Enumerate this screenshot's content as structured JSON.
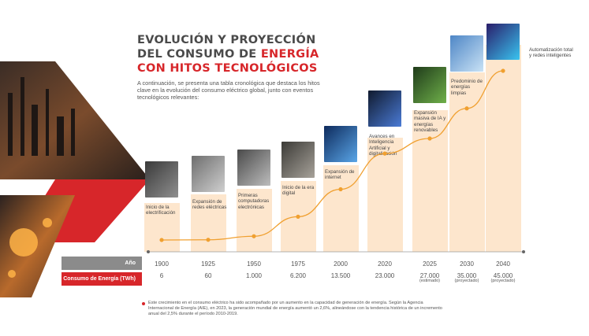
{
  "header": {
    "title_lines": [
      "EVOLUCIÓN Y PROYECCIÓN",
      "DEL CONSUMO DE ",
      "CON HITOS TECNOLÓGICOS"
    ],
    "title_accent": "ENERGÍA",
    "intro": "A continuación, se presenta una tabla cronológica que destaca los hitos clave en la evolución del consumo eléctrico global, junto con eventos tecnológicos relevantes:"
  },
  "rows": {
    "year_label": "Año",
    "consumption_label": "Consumo de Energía (TWh)"
  },
  "milestones": [
    "Inicio de la electrificación",
    "Expansión de redes eléctricas",
    "Primeras computadoras electrónicas",
    "Inicio de la era digital",
    "Expansión de internet",
    "Avances en Inteligencia Artificial y digitalización",
    "Expansión masiva de IA y energías renovables",
    "Predominio de energías limpias",
    "Automatización total y redes inteligentes"
  ],
  "value_labels": [
    "6",
    "60",
    "1.000",
    "6.200",
    "13.500",
    "23.000",
    "27.000",
    "35.000",
    "45.000"
  ],
  "value_notes": [
    "",
    "",
    "",
    "",
    "",
    "",
    "(estimado)",
    "(proyectado)",
    "(proyectado)"
  ],
  "footnote": "Este crecimiento en el consumo eléctrico ha sido acompañado por un aumento en la capacidad de generación de energía. Según la Agencia Internacional de Energía (AIE), en 2023, la generación mundial de energía aumentó un 2,6%, alineándose con la tendencia histórica de un incremento anual del 2,5% durante el período 2010-2019.",
  "colors": {
    "accent": "#d7262a",
    "line": "#f0a030",
    "bar": "#fde6cd",
    "row_gray": "#8b8b8b"
  },
  "chart_data": {
    "type": "line",
    "title": "EVOLUCIÓN Y PROYECCIÓN DEL CONSUMO DE ENERGÍA CON HITOS TECNOLÓGICOS",
    "xlabel": "Año",
    "ylabel": "Consumo de Energía (TWh)",
    "x": [
      "1900",
      "1925",
      "1950",
      "1975",
      "2000",
      "2020",
      "2025",
      "2030",
      "2040"
    ],
    "y": [
      6,
      60,
      1000,
      6200,
      13500,
      23000,
      27000,
      35000,
      45000
    ],
    "grid": false,
    "legend": "none"
  }
}
